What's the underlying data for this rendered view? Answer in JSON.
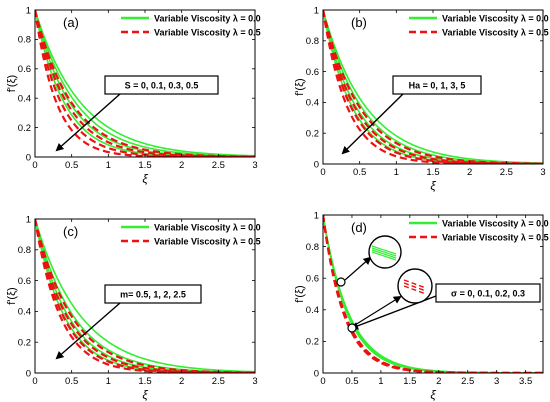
{
  "chart_data": [
    {
      "panel_label": "(a)",
      "type": "line",
      "xlabel": "ξ",
      "ylabel": "f'(ξ)",
      "xlim": [
        0,
        3
      ],
      "ylim": [
        0,
        1
      ],
      "xticks": [
        "0",
        "0.5",
        "1",
        "1.5",
        "2",
        "2.5",
        "3"
      ],
      "yticks": [
        "0",
        "0.2",
        "0.4",
        "0.6",
        "0.8",
        "1"
      ],
      "grid": false,
      "legend": {
        "placement": "top-right",
        "entries": [
          "Variable Viscosity λ = 0.0",
          "Variable Viscosity λ = 0.5"
        ]
      },
      "annotation": "S = 0, 0.1, 0.3, 0.5",
      "series": [
        {
          "name": "Variable Viscosity λ = 0.0",
          "color": "#33ee33",
          "dash": "solid",
          "decay_rates": [
            1.6,
            1.8,
            2.1,
            2.5
          ]
        },
        {
          "name": "Variable Viscosity λ = 0.5",
          "color": "#ee1111",
          "dash": "dashed",
          "decay_rates": [
            2.0,
            2.3,
            2.8,
            3.4
          ]
        }
      ]
    },
    {
      "panel_label": "(b)",
      "type": "line",
      "xlabel": "ξ",
      "ylabel": "f'(ξ)",
      "xlim": [
        0,
        3
      ],
      "ylim": [
        0,
        1
      ],
      "xticks": [
        "0",
        "0.5",
        "1",
        "1.5",
        "2",
        "2.5",
        "3"
      ],
      "yticks": [
        "0",
        "0.2",
        "0.4",
        "0.6",
        "0.8",
        "1"
      ],
      "grid": false,
      "legend": {
        "placement": "top-right",
        "entries": [
          "Variable Viscosity λ = 0.0",
          "Variable Viscosity λ = 0.5"
        ]
      },
      "annotation": "Ha = 0, 1, 3, 5",
      "series": [
        {
          "name": "Variable Viscosity λ = 0.0",
          "color": "#33ee33",
          "dash": "solid",
          "decay_rates": [
            1.7,
            1.9,
            2.2,
            2.5
          ]
        },
        {
          "name": "Variable Viscosity λ = 0.5",
          "color": "#ee1111",
          "dash": "dashed",
          "decay_rates": [
            2.0,
            2.3,
            2.6,
            3.0
          ]
        }
      ]
    },
    {
      "panel_label": "(c)",
      "type": "line",
      "xlabel": "ξ",
      "ylabel": "f'(ξ)",
      "xlim": [
        0,
        3
      ],
      "ylim": [
        0,
        1
      ],
      "xticks": [
        "0",
        "0.5",
        "1",
        "1.5",
        "2",
        "2.5",
        "3"
      ],
      "yticks": [
        "0",
        "0.2",
        "0.4",
        "0.6",
        "0.8",
        "1"
      ],
      "grid": false,
      "legend": {
        "placement": "top-right",
        "entries": [
          "Variable Viscosity λ = 0.0",
          "Variable Viscosity λ = 0.5"
        ]
      },
      "annotation": "m= 0.5, 1, 2, 2.5",
      "series": [
        {
          "name": "Variable Viscosity λ = 0.0",
          "color": "#33ee33",
          "dash": "solid",
          "decay_rates": [
            1.6,
            1.9,
            2.2,
            2.5
          ]
        },
        {
          "name": "Variable Viscosity λ = 0.5",
          "color": "#ee1111",
          "dash": "dashed",
          "decay_rates": [
            2.0,
            2.3,
            2.6,
            2.9
          ]
        }
      ]
    },
    {
      "panel_label": "(d)",
      "type": "line",
      "xlabel": "ξ",
      "ylabel": "f'(ξ)",
      "xlim": [
        0,
        3.8
      ],
      "ylim": [
        0,
        1
      ],
      "xticks": [
        "0",
        "0.5",
        "1",
        "1.5",
        "2",
        "2.5",
        "3",
        "3.5"
      ],
      "yticks": [
        "0",
        "0.2",
        "0.4",
        "0.6",
        "0.8",
        "1"
      ],
      "grid": false,
      "legend": {
        "placement": "top-right",
        "entries": [
          "Variable Viscosity λ = 0.0",
          "Variable Viscosity λ = 0.5"
        ]
      },
      "annotation": "σ = 0, 0.1, 0.2, 0.3",
      "series": [
        {
          "name": "Variable Viscosity λ = 0.0",
          "color": "#33ee33",
          "dash": "solid",
          "decay_rates": [
            2.2,
            2.25,
            2.3,
            2.35
          ]
        },
        {
          "name": "Variable Viscosity λ = 0.5",
          "color": "#ee1111",
          "dash": "dashed",
          "decay_rates": [
            2.6,
            2.65,
            2.7,
            2.75
          ]
        }
      ]
    }
  ]
}
